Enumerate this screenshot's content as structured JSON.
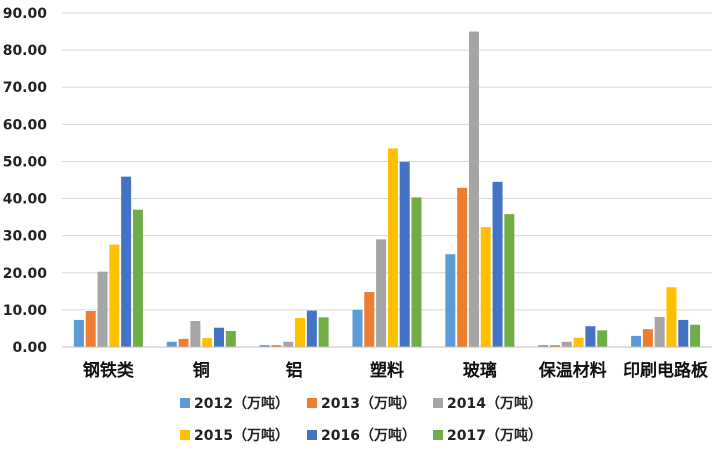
{
  "chart_data": {
    "type": "bar",
    "title": "",
    "xlabel": "",
    "ylabel": "",
    "ylim": [
      0,
      90
    ],
    "yticks": [
      "0.00",
      "10.00",
      "20.00",
      "30.00",
      "40.00",
      "50.00",
      "60.00",
      "70.00",
      "80.00",
      "90.00"
    ],
    "grid": true,
    "legend_position": "bottom",
    "categories": [
      "钢铁类",
      "铜",
      "铝",
      "塑料",
      "玻璃",
      "保温材料",
      "印刷电路板"
    ],
    "series": [
      {
        "name": "2012（万吨）",
        "color": "#5B9BD5",
        "values": [
          7.3,
          1.4,
          0.5,
          10.0,
          25.0,
          0.5,
          3.0
        ]
      },
      {
        "name": "2013（万吨）",
        "color": "#ED7D31",
        "values": [
          9.7,
          2.2,
          0.5,
          14.8,
          42.9,
          0.5,
          4.8
        ]
      },
      {
        "name": "2014（万吨）",
        "color": "#A5A5A5",
        "values": [
          20.3,
          7.0,
          1.4,
          29.0,
          85.0,
          1.4,
          8.1
        ]
      },
      {
        "name": "2015（万吨）",
        "color": "#FFC000",
        "values": [
          27.6,
          2.4,
          7.8,
          53.5,
          32.3,
          2.5,
          16.1
        ]
      },
      {
        "name": "2016（万吨）",
        "color": "#4472C4",
        "values": [
          45.9,
          5.2,
          9.8,
          49.9,
          44.5,
          5.6,
          7.3
        ]
      },
      {
        "name": "2017（万吨）",
        "color": "#70AD47",
        "values": [
          37.0,
          4.3,
          8.0,
          40.3,
          35.8,
          4.5,
          6.0
        ]
      }
    ]
  }
}
